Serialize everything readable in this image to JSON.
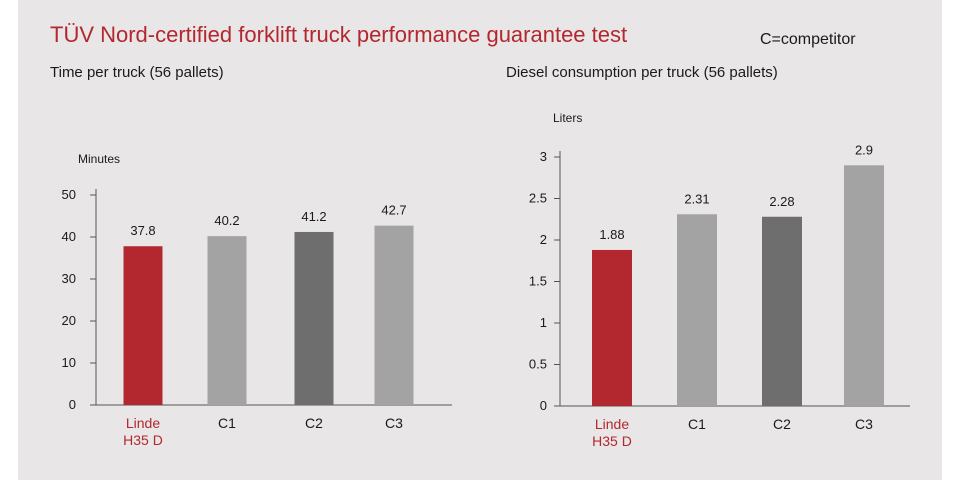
{
  "header": {
    "title": "TÜV Nord-certified forklift truck performance guarantee test",
    "note": "C=competitor"
  },
  "colors": {
    "highlight": "#b3282e",
    "light_bar": "#a3a3a3",
    "dark_bar": "#6e6e6e",
    "axis": "#555555"
  },
  "chart_data": [
    {
      "type": "bar",
      "title": "Time per truck (56 pallets)",
      "ylabel": "Minutes",
      "categories": [
        [
          "Linde",
          "H35 D"
        ],
        [
          "C1"
        ],
        [
          "C2"
        ],
        [
          "C3"
        ]
      ],
      "values": [
        37.8,
        40.2,
        41.2,
        42.7
      ],
      "value_labels": [
        "37.8",
        "40.2",
        "41.2",
        "42.7"
      ],
      "yticks": [
        "0",
        "10",
        "20",
        "30",
        "40",
        "50"
      ],
      "ylim": [
        0,
        50
      ],
      "bar_colors": [
        "#b3282e",
        "#a3a3a3",
        "#6e6e6e",
        "#a3a3a3"
      ],
      "grid": false
    },
    {
      "type": "bar",
      "title": "Diesel consumption per truck (56 pallets)",
      "ylabel": "Liters",
      "categories": [
        [
          "Linde",
          "H35 D"
        ],
        [
          "C1"
        ],
        [
          "C2"
        ],
        [
          "C3"
        ]
      ],
      "values": [
        1.88,
        2.31,
        2.28,
        2.9
      ],
      "value_labels": [
        "1.88",
        "2.31",
        "2.28",
        "2.9"
      ],
      "yticks": [
        "0",
        "0.5",
        "1",
        "1.5",
        "2",
        "2.5",
        "3"
      ],
      "ylim": [
        0,
        3
      ],
      "bar_colors": [
        "#b3282e",
        "#a3a3a3",
        "#6e6e6e",
        "#a3a3a3"
      ],
      "grid": false
    }
  ]
}
